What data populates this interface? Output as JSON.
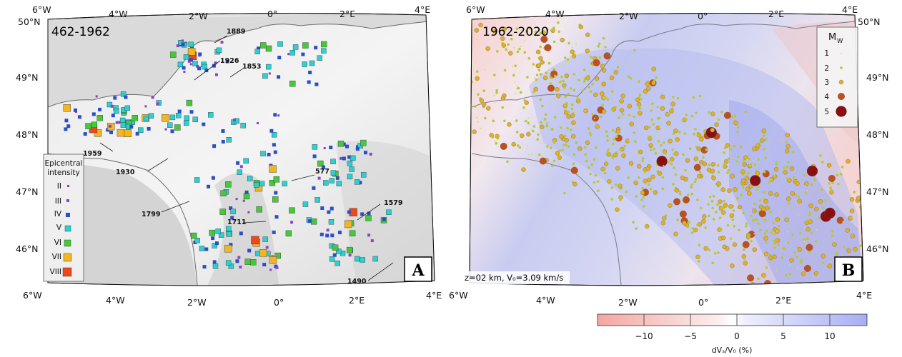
{
  "panel_a": {
    "period": "462-1962",
    "letter": "A",
    "lon_ticks": [
      "6°W",
      "4°W",
      "2°W",
      "0°",
      "2°E",
      "4°E"
    ],
    "lat_ticks": [
      "50°N",
      "49°N",
      "48°N",
      "47°N",
      "46°N"
    ],
    "year_labels": [
      "1889",
      "1926",
      "1853",
      "1959",
      "1930",
      "577",
      "1799",
      "1711",
      "1579",
      "1490"
    ],
    "legend": {
      "title_line1": "Epicentral",
      "title_line2": "intensity",
      "items": [
        {
          "label": "II",
          "color": "#8b3fb8"
        },
        {
          "label": "III",
          "color": "#8a46c8"
        },
        {
          "label": "IV",
          "color": "#2b4fc7"
        },
        {
          "label": "V",
          "color": "#2ecfd0"
        },
        {
          "label": "VI",
          "color": "#45c83a"
        },
        {
          "label": "VII",
          "color": "#f2b623"
        },
        {
          "label": "VIII",
          "color": "#ec4a1c"
        }
      ]
    }
  },
  "panel_b": {
    "period": "1962-2020",
    "letter": "B",
    "lon_ticks": [
      "6°W",
      "4°W",
      "2°W",
      "0°",
      "2°E",
      "4°E"
    ],
    "lat_ticks": [
      "50°N",
      "49°N",
      "48°N",
      "47°N",
      "46°N"
    ],
    "depth_label": "z=02 km, V₀=3.09 km/s",
    "legend": {
      "title": "M",
      "title_sub": "W",
      "items": [
        {
          "label": "1",
          "color": "#d8d86a"
        },
        {
          "label": "2",
          "color": "#b8c832"
        },
        {
          "label": "3",
          "color": "#e0b020"
        },
        {
          "label": "4",
          "color": "#c0501a"
        },
        {
          "label": "5",
          "color": "#8a0f0f"
        }
      ]
    }
  },
  "colorbar": {
    "ticks": [
      "−10",
      "−5",
      "0",
      "5",
      "10"
    ],
    "label": "dVₛ/V₀ (%)",
    "low_color": "#f4a6a0",
    "high_color": "#a6aef4"
  }
}
